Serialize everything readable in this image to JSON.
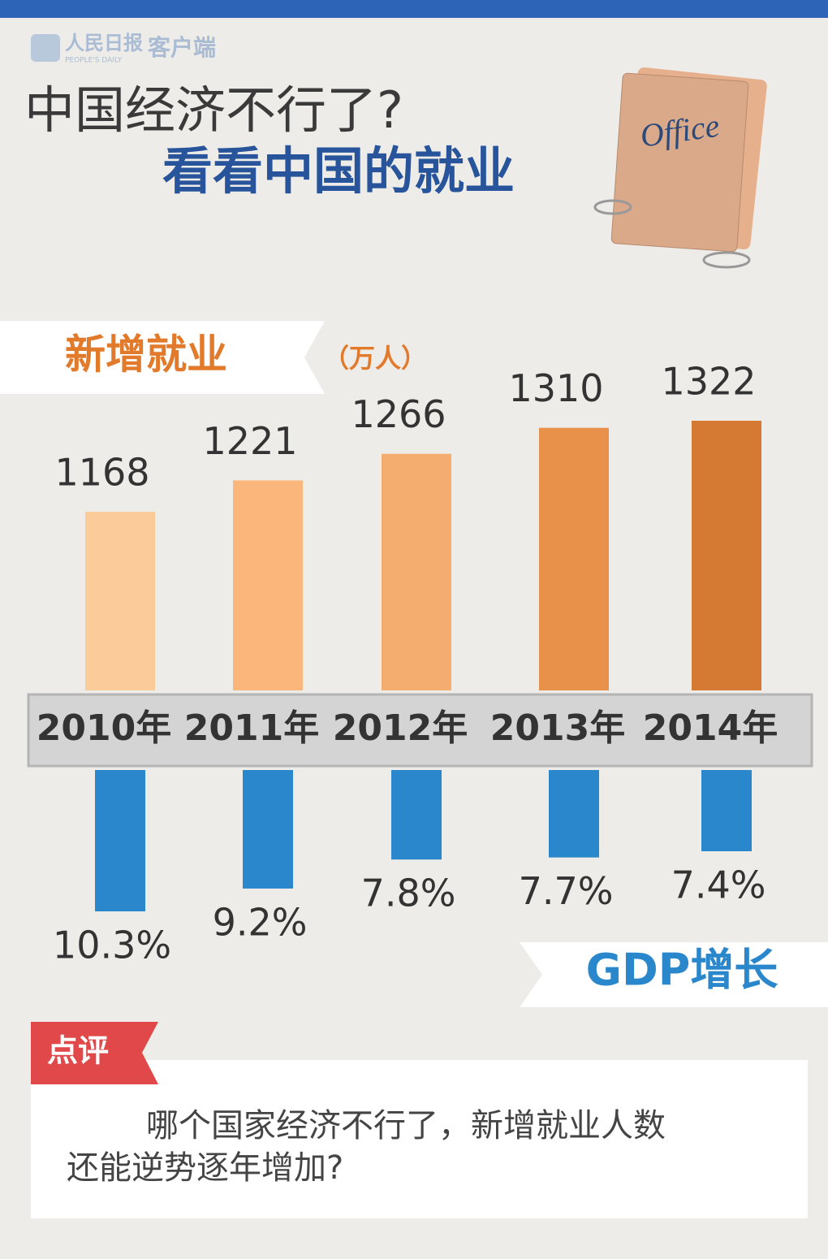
{
  "logo": {
    "name": "人民日报",
    "suffix": "客户端",
    "english": "PEOPLE'S DAILY"
  },
  "title_line1": "中国经济不行了?",
  "title_line2": "看看中国的就业",
  "folder_label": "Office",
  "chart_data": [
    {
      "type": "bar",
      "title": "新增就业",
      "unit": "（万人）",
      "categories": [
        "2010年",
        "2011年",
        "2012年",
        "2013年",
        "2014年"
      ],
      "values": [
        1168,
        1221,
        1266,
        1310,
        1322
      ],
      "colors": [
        "#fccb9a",
        "#fbb77b",
        "#f4ad6e",
        "#e8914a",
        "#d47a33"
      ]
    },
    {
      "type": "bar",
      "title": "GDP增长",
      "values": [
        10.3,
        9.2,
        7.8,
        7.7,
        7.4
      ],
      "value_labels": [
        "10.3%",
        "9.2%",
        "7.8%",
        "7.7%",
        "7.4%"
      ],
      "color": "#2a87cc"
    }
  ],
  "comment": {
    "label": "点评",
    "lines": [
      "哪个国家经济不行了，新增就业人数",
      "还能逆势逐年增加?"
    ]
  }
}
